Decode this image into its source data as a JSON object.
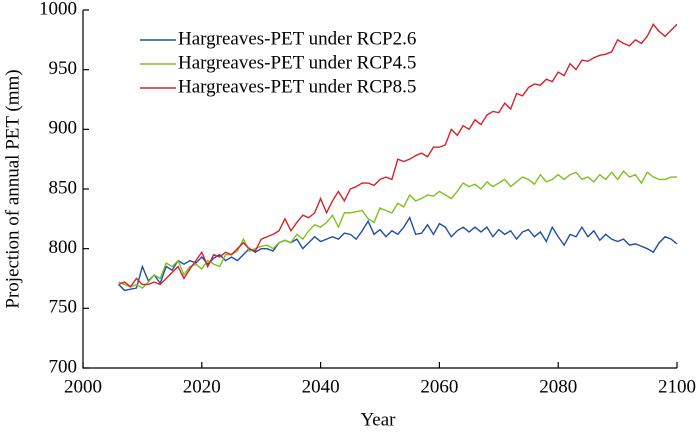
{
  "chart_data": {
    "type": "line",
    "xlabel": "Year",
    "ylabel": "Projection of annual PET (mm)",
    "x": [
      2006,
      2007,
      2008,
      2009,
      2010,
      2011,
      2012,
      2013,
      2014,
      2015,
      2016,
      2017,
      2018,
      2019,
      2020,
      2021,
      2022,
      2023,
      2024,
      2025,
      2026,
      2027,
      2028,
      2029,
      2030,
      2031,
      2032,
      2033,
      2034,
      2035,
      2036,
      2037,
      2038,
      2039,
      2040,
      2041,
      2042,
      2043,
      2044,
      2045,
      2046,
      2047,
      2048,
      2049,
      2050,
      2051,
      2052,
      2053,
      2054,
      2055,
      2056,
      2057,
      2058,
      2059,
      2060,
      2061,
      2062,
      2063,
      2064,
      2065,
      2066,
      2067,
      2068,
      2069,
      2070,
      2071,
      2072,
      2073,
      2074,
      2075,
      2076,
      2077,
      2078,
      2079,
      2080,
      2081,
      2082,
      2083,
      2084,
      2085,
      2086,
      2087,
      2088,
      2089,
      2090,
      2091,
      2092,
      2093,
      2094,
      2095,
      2096,
      2097,
      2098,
      2099,
      2100
    ],
    "series": [
      {
        "name": "Hargreaves-PET under RCP2.6",
        "color": "#1f4fa8",
        "values": [
          770,
          765,
          766,
          767,
          785,
          773,
          778,
          771,
          785,
          782,
          790,
          787,
          790,
          788,
          793,
          787,
          792,
          795,
          790,
          793,
          790,
          795,
          800,
          797,
          800,
          800,
          798,
          805,
          807,
          805,
          808,
          800,
          805,
          810,
          806,
          808,
          810,
          808,
          813,
          812,
          808,
          815,
          823,
          812,
          816,
          810,
          815,
          812,
          818,
          826,
          812,
          813,
          820,
          812,
          821,
          818,
          810,
          815,
          818,
          814,
          818,
          814,
          818,
          810,
          816,
          812,
          815,
          808,
          814,
          816,
          810,
          814,
          806,
          818,
          810,
          803,
          812,
          810,
          818,
          810,
          815,
          807,
          812,
          808,
          806,
          808,
          803,
          804,
          802,
          800,
          797,
          805,
          810,
          808,
          804
        ]
      },
      {
        "name": "Hargreaves-PET under RCP4.5",
        "color": "#7dc21e",
        "values": [
          772,
          770,
          768,
          770,
          767,
          772,
          778,
          775,
          788,
          785,
          790,
          778,
          785,
          787,
          783,
          790,
          787,
          785,
          795,
          795,
          798,
          808,
          798,
          800,
          802,
          803,
          800,
          805,
          807,
          805,
          812,
          808,
          815,
          820,
          818,
          822,
          828,
          818,
          830,
          830,
          831,
          832,
          825,
          822,
          834,
          832,
          830,
          838,
          835,
          845,
          840,
          842,
          845,
          844,
          848,
          845,
          842,
          848,
          855,
          852,
          854,
          850,
          856,
          852,
          855,
          858,
          852,
          856,
          860,
          858,
          854,
          862,
          856,
          858,
          862,
          858,
          862,
          864,
          858,
          860,
          856,
          862,
          858,
          864,
          858,
          865,
          860,
          862,
          855,
          864,
          860,
          858,
          858,
          860,
          860
        ]
      },
      {
        "name": "Hargreaves-PET under RCP8.5",
        "color": "#d8202a",
        "values": [
          770,
          772,
          768,
          775,
          770,
          770,
          772,
          770,
          775,
          780,
          785,
          775,
          783,
          790,
          797,
          785,
          795,
          793,
          797,
          795,
          800,
          805,
          800,
          798,
          808,
          810,
          812,
          815,
          825,
          815,
          822,
          828,
          826,
          830,
          842,
          830,
          840,
          848,
          840,
          850,
          852,
          855,
          855,
          853,
          858,
          860,
          858,
          875,
          873,
          875,
          878,
          880,
          877,
          885,
          885,
          887,
          900,
          895,
          903,
          900,
          908,
          904,
          912,
          915,
          914,
          922,
          917,
          930,
          928,
          935,
          938,
          937,
          942,
          940,
          948,
          945,
          955,
          950,
          958,
          957,
          960,
          962,
          963,
          965,
          975,
          972,
          970,
          975,
          972,
          978,
          988,
          982,
          978,
          983,
          988
        ]
      }
    ],
    "xlim": [
      2000,
      2100
    ],
    "xticks": [
      2000,
      2020,
      2040,
      2060,
      2080,
      2100
    ],
    "ylim": [
      700,
      1000
    ],
    "yticks": [
      700,
      750,
      800,
      850,
      900,
      950,
      1000
    ],
    "legend": "upper left",
    "grid": false
  }
}
